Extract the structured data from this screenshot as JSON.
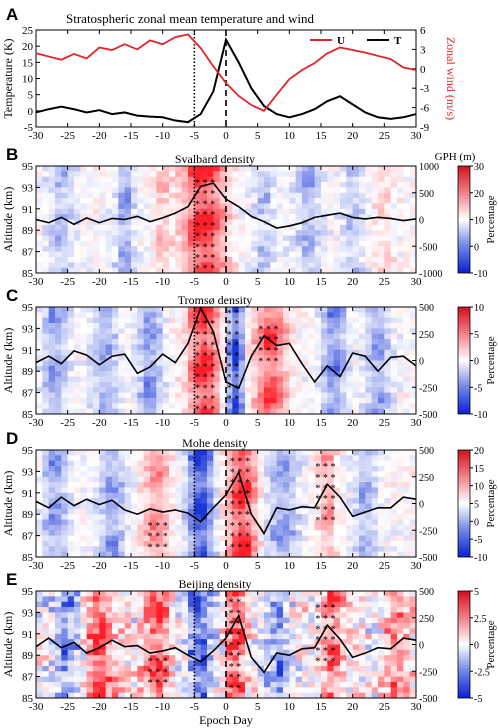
{
  "epoch_label": "Epoch Day",
  "x_ticks": [
    -30,
    -25,
    -20,
    -15,
    -10,
    -5,
    0,
    5,
    10,
    15,
    20,
    25,
    30
  ],
  "panel_a": {
    "letter": "A",
    "title": "Stratospheric zonal mean temperature and wind",
    "ylabel_left": "Temperature (K)",
    "ylabel_right": "Zonal wind (m/s)",
    "left_ticks": [
      -5,
      0,
      5,
      10,
      15,
      20,
      25
    ],
    "right_ticks": [
      -9,
      -6,
      -3,
      0,
      3,
      6
    ],
    "legend": [
      {
        "label": "U",
        "color": "#e0262a"
      },
      {
        "label": "T",
        "color": "#000000"
      }
    ]
  },
  "density_panels": [
    {
      "letter": "B",
      "title": "Svalbard density",
      "colorbar_ticks": [
        "30",
        "20",
        "10",
        "0",
        "-10"
      ],
      "gph_ticks": [
        "1000",
        "500",
        "0",
        "-500",
        "-1000"
      ],
      "gph_label": "GPH (m)"
    },
    {
      "letter": "C",
      "title": "Tromsø density",
      "colorbar_ticks": [
        "10",
        "5",
        "0",
        "-5",
        "-10"
      ],
      "gph_ticks": [
        "500",
        "250",
        "0",
        "-250",
        "-500"
      ]
    },
    {
      "letter": "D",
      "title": "Mohe density",
      "colorbar_ticks": [
        "20",
        "15",
        "10",
        "5",
        "0",
        "-5",
        "-10"
      ],
      "gph_ticks": [
        "500",
        "250",
        "0",
        "-250",
        "-500"
      ]
    },
    {
      "letter": "E",
      "title": "Beijing density",
      "colorbar_ticks": [
        "5",
        "2.5",
        "0",
        "-2.5",
        "-5"
      ],
      "gph_ticks": [
        "500",
        "250",
        "0",
        "-250",
        "-500"
      ]
    }
  ],
  "density_ylabel": "Altitude (km)",
  "colorbar_label": "Percentage",
  "alt_ticks": [
    85,
    87,
    89,
    91,
    93,
    95
  ],
  "colors": {
    "wind": "#e0262a",
    "temp": "#000000",
    "positive": "#e0262a",
    "negative": "#1f3ecf"
  },
  "chart_data": [
    {
      "type": "line",
      "title": "Stratospheric zonal mean temperature and wind",
      "xlabel": "",
      "x": [
        -30,
        -28,
        -26,
        -24,
        -22,
        -20,
        -18,
        -16,
        -14,
        -12,
        -10,
        -8,
        -6,
        -4,
        -2,
        0,
        2,
        4,
        6,
        8,
        10,
        12,
        14,
        16,
        18,
        20,
        22,
        24,
        26,
        28,
        30
      ],
      "series": [
        {
          "name": "U",
          "axis": "right",
          "ylim": [
            -9,
            6
          ],
          "values": [
            2.4,
            1.9,
            1.4,
            2.3,
            1.6,
            3.3,
            2.9,
            3.8,
            3.0,
            4.4,
            3.8,
            4.9,
            5.3,
            3.2,
            0.4,
            -2.2,
            -4.2,
            -5.6,
            -6.5,
            -4.0,
            -1.6,
            -0.2,
            0.9,
            2.4,
            3.3,
            2.9,
            2.5,
            2.0,
            1.5,
            0.2,
            -0.2
          ]
        },
        {
          "name": "T",
          "axis": "left",
          "ylim": [
            -5,
            25
          ],
          "values": [
            -0.5,
            0.5,
            1.3,
            0.5,
            -0.5,
            0.2,
            -1.0,
            -0.5,
            -1.5,
            -1.8,
            -2.0,
            -3.0,
            -3.5,
            -1.0,
            6.0,
            22.0,
            15.0,
            7.0,
            1.5,
            -1.0,
            -2.0,
            -1.0,
            0.5,
            3.0,
            4.5,
            2.0,
            -0.5,
            -2.0,
            -2.5,
            -2.0,
            -1.0
          ]
        }
      ]
    },
    {
      "type": "heatmap",
      "title": "Svalbard density",
      "ylabel": "Altitude (km)",
      "ylim": [
        85,
        95
      ],
      "xlim": [
        -30,
        30
      ],
      "colorbar": {
        "label": "Percentage",
        "range": [
          -10,
          30
        ]
      },
      "overlay": {
        "name": "GPH (m)",
        "range": [
          -1000,
          1000
        ],
        "x": [
          -30,
          -28,
          -26,
          -24,
          -22,
          -20,
          -18,
          -16,
          -14,
          -12,
          -10,
          -8,
          -6,
          -4,
          -2,
          0,
          2,
          4,
          6,
          8,
          10,
          12,
          14,
          16,
          18,
          20,
          22,
          24,
          26,
          28,
          30
        ],
        "values": [
          0,
          -60,
          40,
          -90,
          30,
          -60,
          20,
          0,
          60,
          -40,
          30,
          120,
          240,
          620,
          680,
          380,
          240,
          60,
          -40,
          -160,
          -120,
          -60,
          40,
          80,
          120,
          40,
          10,
          40,
          20,
          -20,
          10
        ]
      }
    },
    {
      "type": "heatmap",
      "title": "Tromsø density",
      "ylabel": "Altitude (km)",
      "ylim": [
        85,
        95
      ],
      "xlim": [
        -30,
        30
      ],
      "colorbar": {
        "label": "Percentage",
        "range": [
          -10,
          10
        ]
      },
      "overlay": {
        "name": "GPH (m)",
        "range": [
          -500,
          500
        ],
        "x": [
          -30,
          -28,
          -26,
          -24,
          -22,
          -20,
          -18,
          -16,
          -14,
          -12,
          -10,
          -8,
          -6,
          -4,
          -2,
          0,
          2,
          4,
          6,
          8,
          10,
          12,
          14,
          16,
          18,
          20,
          22,
          24,
          26,
          28,
          30
        ],
        "values": [
          -20,
          40,
          -30,
          90,
          50,
          -40,
          40,
          60,
          -120,
          -60,
          60,
          -20,
          160,
          490,
          270,
          -200,
          -260,
          40,
          230,
          140,
          160,
          -30,
          -200,
          -50,
          -150,
          70,
          40,
          -100,
          30,
          40,
          -50
        ]
      }
    },
    {
      "type": "heatmap",
      "title": "Mohe density",
      "ylabel": "Altitude (km)",
      "ylim": [
        85,
        95
      ],
      "xlim": [
        -30,
        30
      ],
      "colorbar": {
        "label": "Percentage",
        "range": [
          -10,
          20
        ]
      },
      "overlay": {
        "name": "GPH (m)",
        "range": [
          -500,
          500
        ],
        "x": [
          -30,
          -28,
          -26,
          -24,
          -22,
          -20,
          -18,
          -16,
          -14,
          -12,
          -10,
          -8,
          -6,
          -4,
          -2,
          0,
          2,
          4,
          6,
          8,
          10,
          12,
          14,
          16,
          18,
          20,
          22,
          24,
          26,
          28,
          30
        ],
        "values": [
          20,
          -40,
          60,
          -20,
          40,
          -10,
          30,
          -60,
          -100,
          -50,
          -80,
          -60,
          -90,
          -170,
          -40,
          80,
          290,
          -100,
          -280,
          -40,
          -60,
          -30,
          -40,
          180,
          60,
          -120,
          -80,
          -40,
          -40,
          60,
          40
        ]
      }
    },
    {
      "type": "heatmap",
      "title": "Beijing density",
      "ylabel": "Altitude (km)",
      "xlabel": "Epoch Day",
      "ylim": [
        85,
        95
      ],
      "xlim": [
        -30,
        30
      ],
      "colorbar": {
        "label": "Percentage",
        "range": [
          -5,
          5
        ]
      },
      "overlay": {
        "name": "GPH (m)",
        "range": [
          -500,
          500
        ],
        "x": [
          -30,
          -28,
          -26,
          -24,
          -22,
          -20,
          -18,
          -16,
          -14,
          -12,
          -10,
          -8,
          -6,
          -4,
          -2,
          0,
          2,
          4,
          6,
          8,
          10,
          12,
          14,
          16,
          18,
          20,
          22,
          24,
          26,
          28,
          30
        ],
        "values": [
          -20,
          60,
          -30,
          20,
          -80,
          -30,
          40,
          -20,
          -10,
          -80,
          -60,
          -30,
          -100,
          -160,
          -60,
          60,
          270,
          -120,
          -260,
          -80,
          -100,
          -40,
          -30,
          180,
          50,
          -120,
          -80,
          -30,
          -40,
          60,
          40
        ]
      }
    }
  ]
}
